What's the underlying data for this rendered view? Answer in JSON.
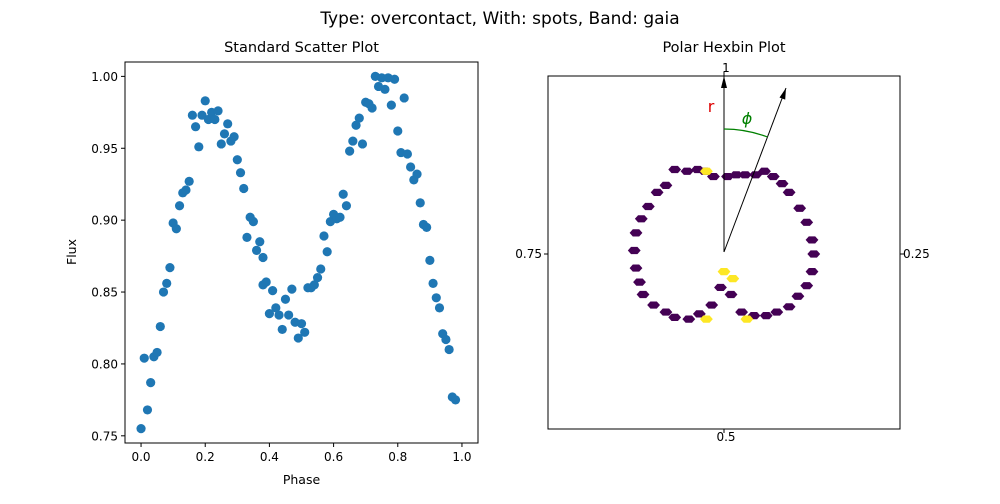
{
  "figure": {
    "suptitle": "Type: overcontact, With: spots, Band: gaia"
  },
  "chart_data": [
    {
      "type": "scatter",
      "title": "Standard Scatter Plot",
      "xlabel": "Phase",
      "ylabel": "Flux",
      "xlim": [
        -0.05,
        1.05
      ],
      "ylim": [
        0.745,
        1.01
      ],
      "xticks": [
        0.0,
        0.2,
        0.4,
        0.6,
        0.8,
        1.0
      ],
      "xtick_labels": [
        "0.0",
        "0.2",
        "0.4",
        "0.6",
        "0.8",
        "1.0"
      ],
      "yticks": [
        0.75,
        0.8,
        0.85,
        0.9,
        0.95,
        1.0
      ],
      "ytick_labels": [
        "0.75",
        "0.80",
        "0.85",
        "0.90",
        "0.95",
        "1.00"
      ],
      "grid": false,
      "color": "#1f77b4",
      "points": [
        [
          0.0,
          0.755
        ],
        [
          0.01,
          0.804
        ],
        [
          0.02,
          0.768
        ],
        [
          0.03,
          0.787
        ],
        [
          0.04,
          0.805
        ],
        [
          0.05,
          0.808
        ],
        [
          0.06,
          0.826
        ],
        [
          0.07,
          0.85
        ],
        [
          0.08,
          0.856
        ],
        [
          0.09,
          0.867
        ],
        [
          0.1,
          0.898
        ],
        [
          0.11,
          0.894
        ],
        [
          0.12,
          0.91
        ],
        [
          0.13,
          0.919
        ],
        [
          0.14,
          0.921
        ],
        [
          0.15,
          0.927
        ],
        [
          0.16,
          0.973
        ],
        [
          0.17,
          0.965
        ],
        [
          0.18,
          0.951
        ],
        [
          0.19,
          0.973
        ],
        [
          0.2,
          0.983
        ],
        [
          0.21,
          0.97
        ],
        [
          0.22,
          0.975
        ],
        [
          0.23,
          0.97
        ],
        [
          0.24,
          0.976
        ],
        [
          0.25,
          0.953
        ],
        [
          0.26,
          0.96
        ],
        [
          0.27,
          0.967
        ],
        [
          0.28,
          0.955
        ],
        [
          0.29,
          0.958
        ],
        [
          0.3,
          0.942
        ],
        [
          0.31,
          0.933
        ],
        [
          0.32,
          0.922
        ],
        [
          0.33,
          0.888
        ],
        [
          0.34,
          0.902
        ],
        [
          0.35,
          0.899
        ],
        [
          0.36,
          0.879
        ],
        [
          0.37,
          0.885
        ],
        [
          0.38,
          0.874
        ],
        [
          0.38,
          0.855
        ],
        [
          0.39,
          0.857
        ],
        [
          0.4,
          0.835
        ],
        [
          0.41,
          0.851
        ],
        [
          0.42,
          0.839
        ],
        [
          0.43,
          0.834
        ],
        [
          0.44,
          0.824
        ],
        [
          0.45,
          0.845
        ],
        [
          0.46,
          0.834
        ],
        [
          0.47,
          0.852
        ],
        [
          0.48,
          0.829
        ],
        [
          0.49,
          0.818
        ],
        [
          0.5,
          0.828
        ],
        [
          0.51,
          0.822
        ],
        [
          0.52,
          0.853
        ],
        [
          0.53,
          0.853
        ],
        [
          0.54,
          0.855
        ],
        [
          0.55,
          0.86
        ],
        [
          0.56,
          0.866
        ],
        [
          0.57,
          0.889
        ],
        [
          0.58,
          0.878
        ],
        [
          0.59,
          0.899
        ],
        [
          0.6,
          0.904
        ],
        [
          0.61,
          0.901
        ],
        [
          0.62,
          0.902
        ],
        [
          0.63,
          0.918
        ],
        [
          0.64,
          0.91
        ],
        [
          0.65,
          0.948
        ],
        [
          0.66,
          0.955
        ],
        [
          0.67,
          0.966
        ],
        [
          0.68,
          0.971
        ],
        [
          0.69,
          0.953
        ],
        [
          0.7,
          0.982
        ],
        [
          0.71,
          0.981
        ],
        [
          0.72,
          0.978
        ],
        [
          0.73,
          1.0
        ],
        [
          0.74,
          0.993
        ],
        [
          0.75,
          0.999
        ],
        [
          0.76,
          0.991
        ],
        [
          0.77,
          0.999
        ],
        [
          0.78,
          0.98
        ],
        [
          0.79,
          0.998
        ],
        [
          0.8,
          0.962
        ],
        [
          0.81,
          0.947
        ],
        [
          0.82,
          0.985
        ],
        [
          0.83,
          0.946
        ],
        [
          0.84,
          0.937
        ],
        [
          0.85,
          0.928
        ],
        [
          0.86,
          0.932
        ],
        [
          0.87,
          0.912
        ],
        [
          0.88,
          0.897
        ],
        [
          0.89,
          0.895
        ],
        [
          0.9,
          0.872
        ],
        [
          0.91,
          0.856
        ],
        [
          0.92,
          0.846
        ],
        [
          0.93,
          0.839
        ],
        [
          0.94,
          0.821
        ],
        [
          0.95,
          0.817
        ],
        [
          0.96,
          0.81
        ],
        [
          0.97,
          0.777
        ],
        [
          0.98,
          0.775
        ]
      ]
    },
    {
      "type": "polar-hexbin",
      "title": "Polar Hexbin Plot",
      "theta_direction": "clockwise",
      "theta_zero": "top",
      "theta_ticks": [
        1.0,
        0.25,
        0.5,
        0.75
      ],
      "theta_tick_labels": [
        "1",
        "0.25",
        "0.5",
        "0.75"
      ],
      "annotations": {
        "r_label": "r",
        "phi_label": "ϕ",
        "r_color": "#dd0000",
        "phi_color": "#008000"
      },
      "colormap": {
        "low": "#440154",
        "high": "#fde725"
      },
      "hexbins": [
        {
          "x": -0.28,
          "y": 0.48,
          "c": 0
        },
        {
          "x": -0.21,
          "y": 0.47,
          "c": 0
        },
        {
          "x": -0.15,
          "y": 0.48,
          "c": 0
        },
        {
          "x": -0.11,
          "y": 0.47,
          "c": 0
        },
        {
          "x": -0.06,
          "y": 0.44,
          "c": 0
        },
        {
          "x": 0.02,
          "y": 0.44,
          "c": 0
        },
        {
          "x": 0.07,
          "y": 0.45,
          "c": 0
        },
        {
          "x": 0.12,
          "y": 0.45,
          "c": 0
        },
        {
          "x": 0.18,
          "y": 0.45,
          "c": 0
        },
        {
          "x": 0.23,
          "y": 0.47,
          "c": 0
        },
        {
          "x": 0.28,
          "y": 0.44,
          "c": 0
        },
        {
          "x": 0.33,
          "y": 0.4,
          "c": 0
        },
        {
          "x": 0.37,
          "y": 0.35,
          "c": 0
        },
        {
          "x": -0.33,
          "y": 0.39,
          "c": 0
        },
        {
          "x": -0.38,
          "y": 0.35,
          "c": 0
        },
        {
          "x": -0.43,
          "y": 0.27,
          "c": 0
        },
        {
          "x": -0.47,
          "y": 0.2,
          "c": 0
        },
        {
          "x": -0.5,
          "y": 0.12,
          "c": 0
        },
        {
          "x": -0.51,
          "y": 0.02,
          "c": 0
        },
        {
          "x": -0.5,
          "y": -0.08,
          "c": 0
        },
        {
          "x": -0.48,
          "y": -0.16,
          "c": 0
        },
        {
          "x": -0.46,
          "y": -0.23,
          "c": 0
        },
        {
          "x": -0.4,
          "y": -0.29,
          "c": 0
        },
        {
          "x": -0.33,
          "y": -0.33,
          "c": 0
        },
        {
          "x": -0.28,
          "y": -0.36,
          "c": 0
        },
        {
          "x": -0.2,
          "y": -0.37,
          "c": 0
        },
        {
          "x": -0.14,
          "y": -0.34,
          "c": 0
        },
        {
          "x": -0.07,
          "y": -0.29,
          "c": 0
        },
        {
          "x": -0.02,
          "y": -0.19,
          "c": 0
        },
        {
          "x": 0.04,
          "y": -0.23,
          "c": 0
        },
        {
          "x": 0.1,
          "y": -0.33,
          "c": 0
        },
        {
          "x": 0.17,
          "y": -0.35,
          "c": 0
        },
        {
          "x": 0.24,
          "y": -0.35,
          "c": 0
        },
        {
          "x": 0.3,
          "y": -0.33,
          "c": 0
        },
        {
          "x": 0.37,
          "y": -0.3,
          "c": 0
        },
        {
          "x": 0.42,
          "y": -0.24,
          "c": 0
        },
        {
          "x": 0.47,
          "y": -0.18,
          "c": 0
        },
        {
          "x": 0.5,
          "y": -0.1,
          "c": 0
        },
        {
          "x": 0.51,
          "y": 0.0,
          "c": 0
        },
        {
          "x": 0.5,
          "y": 0.08,
          "c": 0
        },
        {
          "x": 0.47,
          "y": 0.18,
          "c": 0
        },
        {
          "x": 0.43,
          "y": 0.26,
          "c": 0
        },
        {
          "x": -0.1,
          "y": 0.47,
          "c": 1
        },
        {
          "x": -0.1,
          "y": -0.37,
          "c": 1
        },
        {
          "x": 0.0,
          "y": -0.1,
          "c": 1
        },
        {
          "x": 0.05,
          "y": -0.14,
          "c": 1
        },
        {
          "x": 0.13,
          "y": -0.37,
          "c": 1
        }
      ]
    }
  ]
}
